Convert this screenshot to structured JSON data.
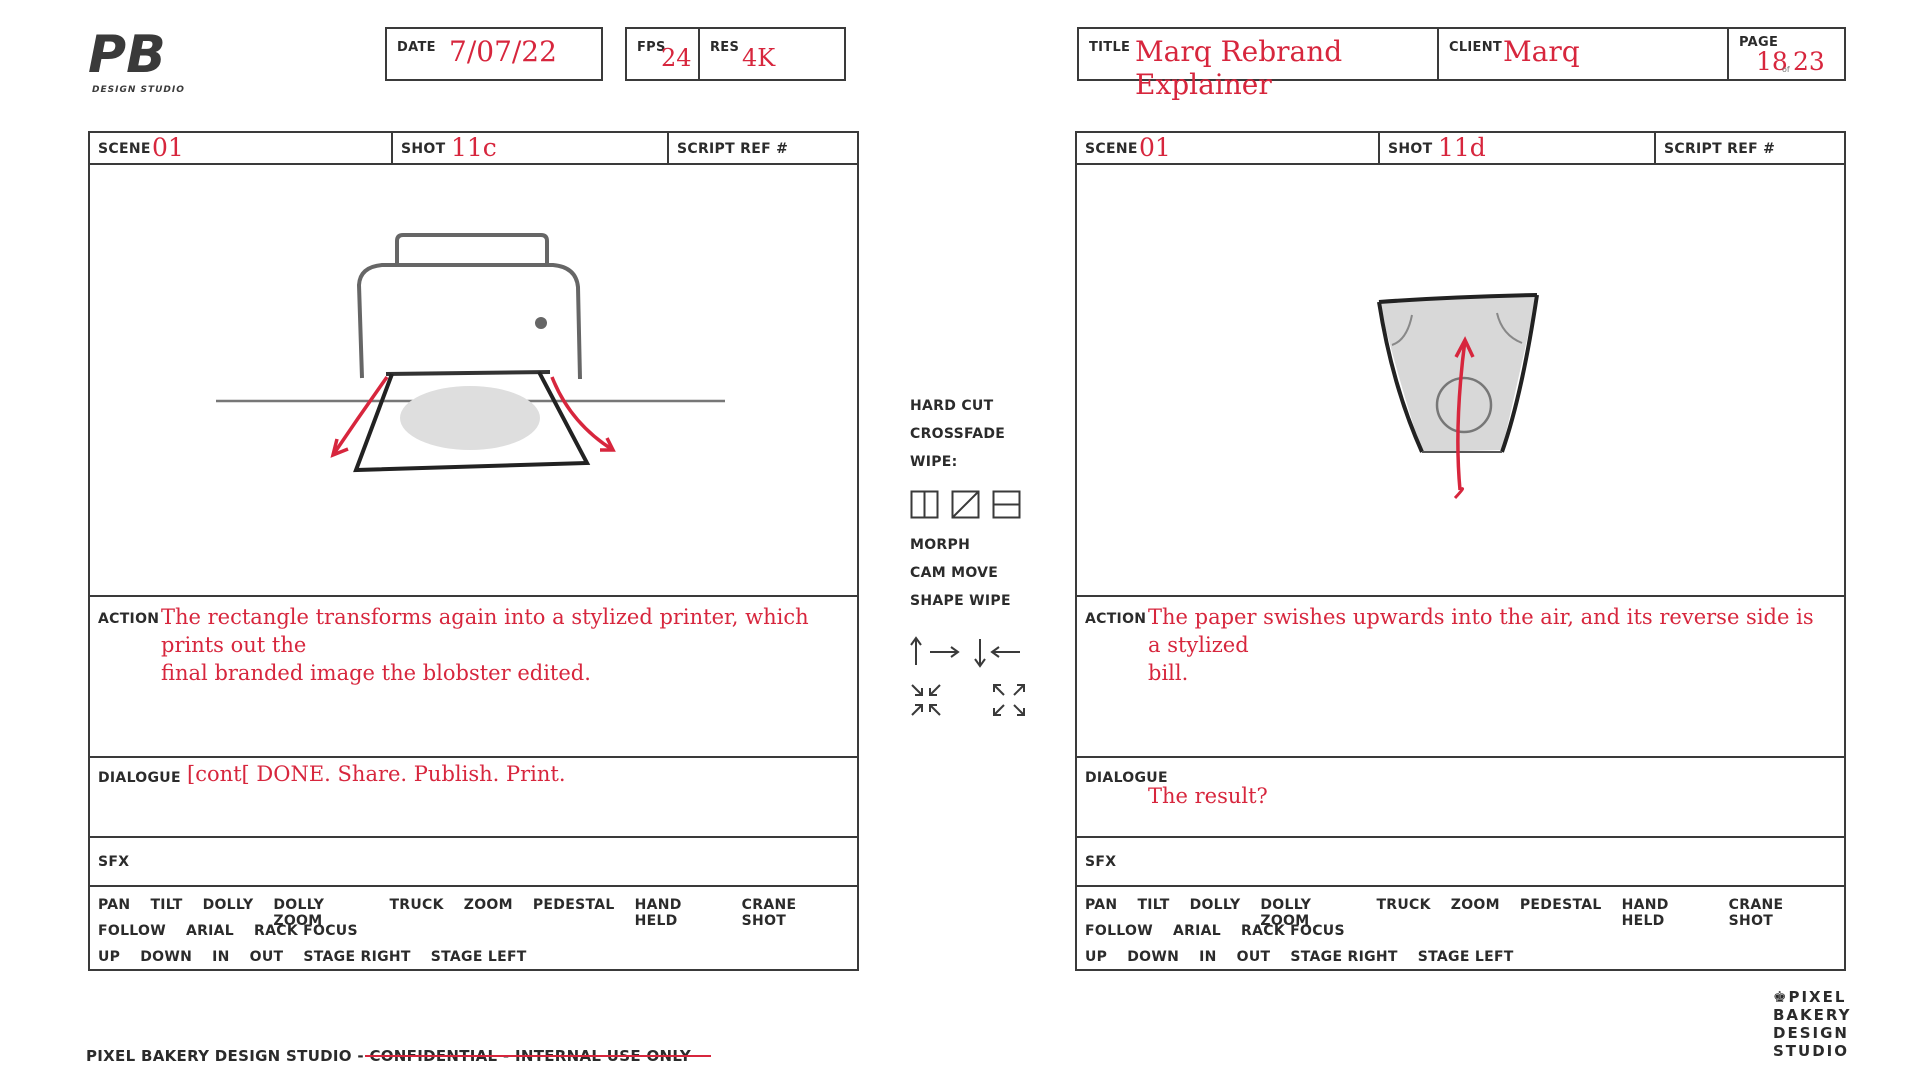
{
  "logo": {
    "mark": "PB",
    "tagline": "DESIGN STUDIO"
  },
  "header": {
    "date_label": "DATE",
    "date": "7/07/22",
    "fps_label": "FPS",
    "fps": "24",
    "res_label": "RES",
    "res": "4K",
    "title_label": "TITLE",
    "title": "Marq Rebrand Explainer",
    "client_label": "CLIENT",
    "client": "Marq",
    "page_label": "PAGE",
    "page_current": "18",
    "page_of": "of",
    "page_total": "23"
  },
  "labels": {
    "scene": "SCENE",
    "shot": "SHOT",
    "script_ref": "SCRIPT REF #",
    "action": "ACTION",
    "dialogue": "DIALOGUE",
    "sfx": "SFX"
  },
  "camera_moves": {
    "line1": [
      "PAN",
      "TILT",
      "DOLLY",
      "DOLLY ZOOM",
      "TRUCK",
      "ZOOM",
      "PEDESTAL",
      "HAND HELD",
      "CRANE SHOT"
    ],
    "line2": [
      "FOLLOW",
      "ARIAL",
      "RACK FOCUS"
    ],
    "line3": [
      "UP",
      "DOWN",
      "IN",
      "OUT",
      "STAGE RIGHT",
      "STAGE LEFT"
    ]
  },
  "panels": [
    {
      "scene": "01",
      "shot": "11c",
      "script_ref": "",
      "frame_icon": "printer-sketch",
      "action_line1": "The rectangle transforms again into a stylized printer, which prints out the",
      "action_line2": "final branded image the blobster edited.",
      "dialogue": "[cont[ DONE. Share. Publish. Print.",
      "sfx": ""
    },
    {
      "scene": "01",
      "shot": "11d",
      "script_ref": "",
      "frame_icon": "paper-swish-sketch",
      "action_line1": "The paper swishes upwards into the air, and its reverse side is a stylized",
      "action_line2": "bill.",
      "dialogue": "The result?",
      "sfx": ""
    }
  ],
  "transitions": {
    "items": [
      "HARD CUT",
      "CROSSFADE",
      "WIPE:"
    ],
    "items2": [
      "MORPH",
      "CAM MOVE",
      "SHAPE WIPE"
    ],
    "wipe_icons": [
      "wipe-vertical-icon",
      "wipe-diagonal-icon",
      "wipe-horizontal-icon"
    ],
    "motion_icons": [
      "arrow-up-right-icon",
      "arrow-down-left-icon",
      "collapse-icon",
      "expand-icon"
    ]
  },
  "footer": {
    "studio": "PIXEL BAKERY DESIGN STUDIO - ",
    "struck": "CONFIDENTIAL - INTERNAL USE ONLY",
    "logo_lines": [
      "PIXEL",
      "BAKERY",
      "DESIGN",
      "STUDIO"
    ]
  },
  "colors": {
    "accent": "#d7263d",
    "ink": "#2b2b2b",
    "border": "#3a3a3a"
  }
}
